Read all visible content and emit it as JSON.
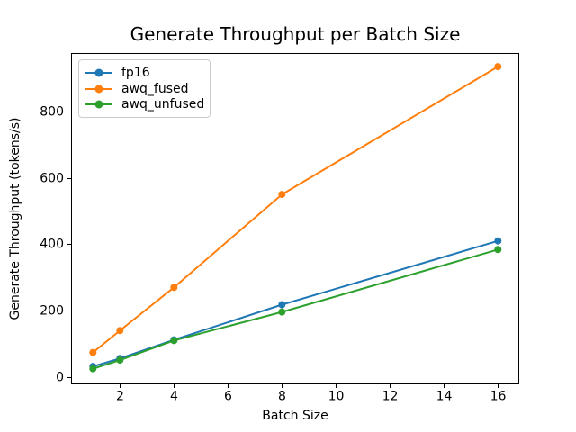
{
  "figure": {
    "background": "#ffffff",
    "text_color": "#000000",
    "spine_color": "#000000",
    "legend_border_color": "#cccccc"
  },
  "chart_data": {
    "type": "line",
    "title": "Generate Throughput per Batch Size",
    "xlabel": "Batch Size",
    "ylabel": "Generate Throughput (tokens/s)",
    "x": [
      1,
      2,
      4,
      8,
      16
    ],
    "series": [
      {
        "name": "fp16",
        "color": "#1f77b4",
        "values": [
          32,
          56,
          112,
          218,
          410
        ]
      },
      {
        "name": "awq_fused",
        "color": "#ff7f0e",
        "values": [
          74,
          140,
          270,
          550,
          935
        ]
      },
      {
        "name": "awq_unfused",
        "color": "#2ca02c",
        "values": [
          25,
          51,
          110,
          196,
          384
        ]
      }
    ],
    "xticks": [
      2,
      4,
      6,
      8,
      10,
      12,
      14,
      16
    ],
    "yticks": [
      0,
      200,
      400,
      600,
      800
    ],
    "xlim": [
      0.19,
      16.79
    ],
    "ylim": [
      -22,
      976
    ],
    "grid": false,
    "legend_position": "upper left",
    "marker": "circle"
  }
}
